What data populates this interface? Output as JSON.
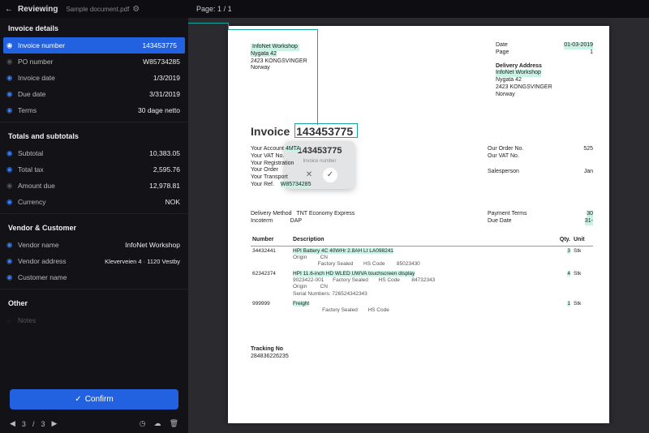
{
  "topbar": {
    "title": "Reviewing",
    "document": "Sample document.pdf",
    "page_label": "Page:",
    "page_current": "1",
    "page_total": "1"
  },
  "sections": {
    "invoice_details": {
      "heading": "Invoice details",
      "fields": {
        "invoice_number": {
          "label": "Invoice number",
          "value": "143453775"
        },
        "po_number": {
          "label": "PO number",
          "value": "W85734285"
        },
        "invoice_date": {
          "label": "Invoice date",
          "value": "1/3/2019"
        },
        "due_date": {
          "label": "Due date",
          "value": "3/31/2019"
        },
        "terms": {
          "label": "Terms",
          "value": "30 dage netto"
        }
      }
    },
    "totals": {
      "heading": "Totals and subtotals",
      "fields": {
        "subtotal": {
          "label": "Subtotal",
          "value": "10,383.05"
        },
        "total_tax": {
          "label": "Total tax",
          "value": "2,595.76"
        },
        "amount_due": {
          "label": "Amount due",
          "value": "12,978.81"
        },
        "currency": {
          "label": "Currency",
          "value": "NOK"
        }
      }
    },
    "vendor": {
      "heading": "Vendor & Customer",
      "fields": {
        "vendor_name": {
          "label": "Vendor name",
          "value": "InfoNet Workshop"
        },
        "vendor_address": {
          "label": "Vendor address",
          "value": "Kleverveien 4 · 1120 Vestby"
        },
        "customer_name": {
          "label": "Customer name",
          "value": ""
        }
      }
    },
    "other": {
      "heading": "Other",
      "notes_label": "Notes"
    }
  },
  "actions": {
    "confirm": "Confirm"
  },
  "pager": {
    "current": "3",
    "total": "3"
  },
  "popover": {
    "value": "143453775",
    "caption": "Invoice number"
  },
  "colors": {
    "accent": "#2262e0",
    "highlight": "#c9f3e4",
    "connector": "#1aa6a0",
    "panel_bg": "#121217",
    "canvas_bg": "#2a2a2f"
  },
  "doc": {
    "sender": {
      "name": "InfoNet Workshop",
      "line2": "Nygata 42",
      "line3": "2423 KONGSVINGER",
      "line4": "Norway"
    },
    "meta": {
      "date_label": "Date",
      "date": "01-03-2019",
      "page_label": "Page",
      "page": "1"
    },
    "delivery": {
      "heading": "Delivery Address",
      "line1": "InfoNet Workshop",
      "line2": "Nygata 42",
      "line3": "2423 KONGSVINGER",
      "line4": "Norway"
    },
    "invoice_word": "Invoice",
    "invoice_number": "143453775",
    "left_details": {
      "acct": "Your Account",
      "acct_v": "4MTA",
      "vat": "Your VAT No.",
      "reg": "Your Registration",
      "order": "Your Order",
      "transp": "Your Transport",
      "ref": "Your Ref.",
      "ref_v": "W85734285"
    },
    "right_details": {
      "order": "Our Order No.",
      "order_v": "525",
      "vat": "Our VAT No.",
      "sales": "Salesperson",
      "sales_v": "Jan"
    },
    "ship": {
      "method_l": "Delivery Method",
      "method_v": "TNT Economy Express",
      "inco_l": "Incoterm",
      "inco_v": "DAP",
      "pay_l": "Payment Terms",
      "pay_v": "30",
      "due_l": "Due Date",
      "due_v": "31-"
    },
    "table": {
      "headers": {
        "num": "Number",
        "desc": "Description",
        "qty": "Qty.",
        "unit": "Unit"
      },
      "rows": [
        {
          "num": "34432441",
          "desc": "HPI Battery 4C 40WHr 2.8AH LI LA098241",
          "sub": "Origin         CN\n                 Factory Sealed       HS Code        85023430",
          "qty": "3",
          "unit": "Stk"
        },
        {
          "num": "62342374",
          "desc": "HPI 11.6-inch HD WLED UWVA touchscreen display",
          "sub": "9023422-001      Factory Sealed       HS Code        84732343\nOrigin         CN\nSerial Numbers: 726524342343",
          "qty": "4",
          "unit": "Stk"
        },
        {
          "num": "999999",
          "desc": "Freight",
          "sub": "                    Factory Sealed       HS Code",
          "qty": "1",
          "unit": "Stk"
        }
      ]
    },
    "tracking": {
      "label": "Tracking No",
      "value": "284836226235"
    }
  }
}
